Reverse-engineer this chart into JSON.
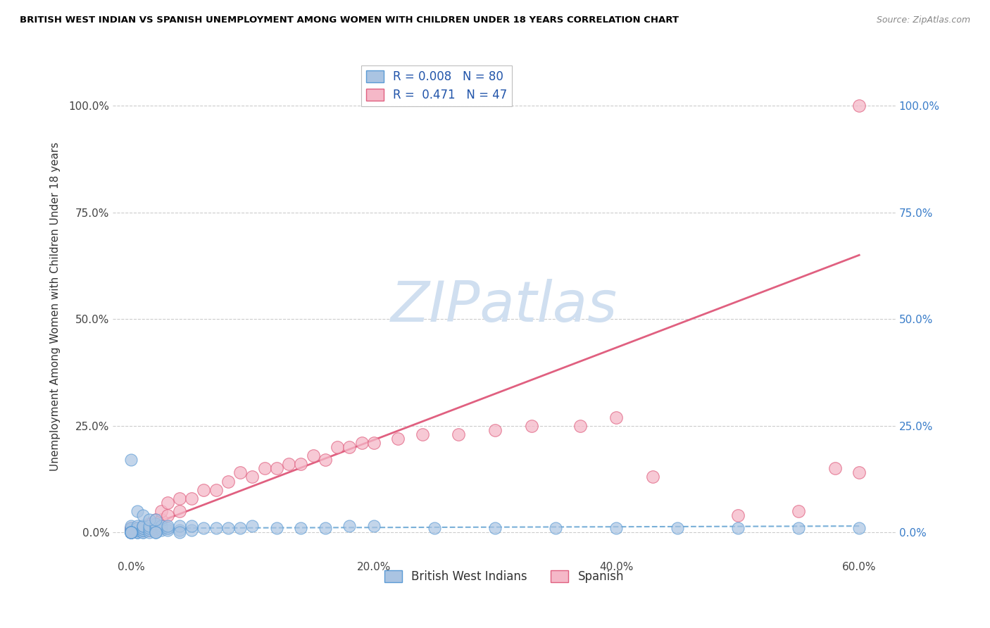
{
  "title": "BRITISH WEST INDIAN VS SPANISH UNEMPLOYMENT AMONG WOMEN WITH CHILDREN UNDER 18 YEARS CORRELATION CHART",
  "source": "Source: ZipAtlas.com",
  "ylabel": "Unemployment Among Women with Children Under 18 years",
  "ylabel_ticks": [
    "0.0%",
    "25.0%",
    "50.0%",
    "75.0%",
    "100.0%"
  ],
  "ylabel_vals": [
    0.0,
    0.25,
    0.5,
    0.75,
    1.0
  ],
  "xlabel_ticks": [
    "0.0%",
    "20.0%",
    "40.0%",
    "60.0%"
  ],
  "xlabel_vals": [
    0.0,
    0.2,
    0.4,
    0.6
  ],
  "xlim": [
    -0.015,
    0.63
  ],
  "ylim": [
    -0.06,
    1.12
  ],
  "bwi_R": 0.008,
  "bwi_N": 80,
  "sp_R": 0.471,
  "sp_N": 47,
  "bwi_color": "#aac4e2",
  "bwi_edge": "#5b9bd5",
  "sp_color": "#f5b8c8",
  "sp_edge": "#e06080",
  "bwi_line_color": "#7ab0d8",
  "sp_line_color": "#e06080",
  "watermark": "ZIPatlas",
  "watermark_color": "#d0dff0",
  "legend_label_bwi": "British West Indians",
  "legend_label_sp": "Spanish",
  "sp_line_x0": 0.0,
  "sp_line_y0": 0.0,
  "sp_line_x1": 0.6,
  "sp_line_y1": 0.65,
  "bwi_line_x0": 0.0,
  "bwi_line_y0": 0.01,
  "bwi_line_x1": 0.6,
  "bwi_line_y1": 0.015,
  "bwi_x": [
    0.0,
    0.0,
    0.0,
    0.0,
    0.0,
    0.0,
    0.0,
    0.0,
    0.0,
    0.0,
    0.005,
    0.005,
    0.005,
    0.005,
    0.005,
    0.005,
    0.005,
    0.005,
    0.01,
    0.01,
    0.01,
    0.01,
    0.01,
    0.01,
    0.01,
    0.01,
    0.015,
    0.015,
    0.015,
    0.015,
    0.02,
    0.02,
    0.02,
    0.02,
    0.02,
    0.025,
    0.025,
    0.025,
    0.03,
    0.03,
    0.03,
    0.04,
    0.04,
    0.05,
    0.05,
    0.06,
    0.07,
    0.08,
    0.09,
    0.1,
    0.12,
    0.14,
    0.16,
    0.18,
    0.2,
    0.25,
    0.3,
    0.35,
    0.4,
    0.45,
    0.5,
    0.55,
    0.6,
    0.0,
    0.005,
    0.01,
    0.015,
    0.02,
    0.0,
    0.0,
    0.0,
    0.0,
    0.0,
    0.0,
    0.0,
    0.0,
    0.02,
    0.02,
    0.04
  ],
  "bwi_y": [
    0.0,
    0.0,
    0.0,
    0.0,
    0.0,
    0.005,
    0.005,
    0.01,
    0.01,
    0.015,
    0.0,
    0.0,
    0.0,
    0.005,
    0.005,
    0.01,
    0.01,
    0.015,
    0.0,
    0.0,
    0.005,
    0.005,
    0.01,
    0.01,
    0.015,
    0.015,
    0.0,
    0.005,
    0.01,
    0.015,
    0.0,
    0.005,
    0.01,
    0.015,
    0.02,
    0.005,
    0.01,
    0.015,
    0.005,
    0.01,
    0.015,
    0.005,
    0.015,
    0.005,
    0.015,
    0.01,
    0.01,
    0.01,
    0.01,
    0.015,
    0.01,
    0.01,
    0.01,
    0.015,
    0.015,
    0.01,
    0.01,
    0.01,
    0.01,
    0.01,
    0.01,
    0.01,
    0.01,
    0.17,
    0.05,
    0.04,
    0.03,
    0.03,
    0.0,
    0.0,
    0.0,
    0.0,
    0.0,
    0.0,
    0.0,
    0.0,
    0.0,
    0.0,
    0.0
  ],
  "sp_x": [
    0.0,
    0.0,
    0.0,
    0.005,
    0.005,
    0.01,
    0.01,
    0.015,
    0.015,
    0.02,
    0.02,
    0.02,
    0.025,
    0.025,
    0.03,
    0.03,
    0.04,
    0.04,
    0.05,
    0.06,
    0.07,
    0.08,
    0.09,
    0.1,
    0.11,
    0.12,
    0.13,
    0.14,
    0.15,
    0.16,
    0.17,
    0.18,
    0.19,
    0.2,
    0.22,
    0.24,
    0.27,
    0.3,
    0.33,
    0.37,
    0.4,
    0.43,
    0.5,
    0.55,
    0.58,
    0.6,
    0.6
  ],
  "sp_y": [
    0.0,
    0.005,
    0.01,
    0.005,
    0.01,
    0.005,
    0.01,
    0.005,
    0.02,
    0.01,
    0.02,
    0.03,
    0.03,
    0.05,
    0.04,
    0.07,
    0.05,
    0.08,
    0.08,
    0.1,
    0.1,
    0.12,
    0.14,
    0.13,
    0.15,
    0.15,
    0.16,
    0.16,
    0.18,
    0.17,
    0.2,
    0.2,
    0.21,
    0.21,
    0.22,
    0.23,
    0.23,
    0.24,
    0.25,
    0.25,
    0.27,
    0.13,
    0.04,
    0.05,
    0.15,
    0.14,
    1.0
  ]
}
